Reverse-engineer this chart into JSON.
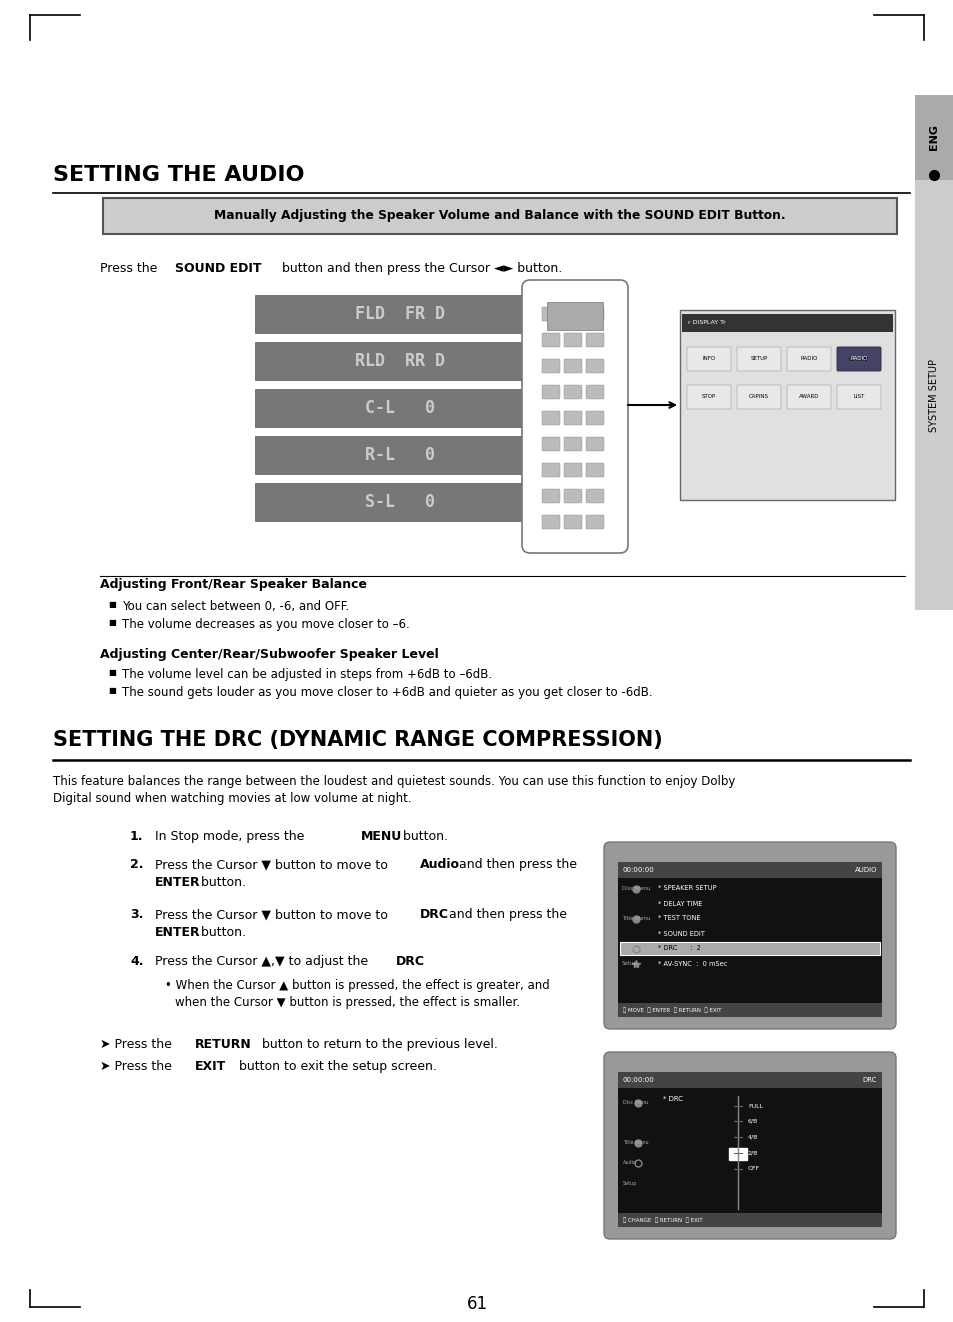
{
  "bg_color": "#ffffff",
  "section1_title": "SETTING THE AUDIO",
  "highlight_box_text": "Manually Adjusting the Speaker Volume and Balance with the SOUND EDIT Button.",
  "display_rows": [
    "FLD  FR D",
    "RLD  RR D",
    "C-L   0",
    "R-L   0",
    "S-L   0"
  ],
  "display_bg": "#777777",
  "display_text_color": "#cccccc",
  "adj_front_title": "Adjusting Front/Rear Speaker Balance",
  "adj_front_bullets": [
    "You can select between 0, -6, and OFF.",
    "The volume decreases as you move closer to –6."
  ],
  "adj_center_title": "Adjusting Center/Rear/Subwoofer Speaker Level",
  "adj_center_bullets": [
    "The volume level can be adjusted in steps from +6dB to –6dB.",
    "The sound gets louder as you move closer to +6dB and quieter as you get closer to -6dB."
  ],
  "section2_title": "SETTING THE DRC (DYNAMIC RANGE COMPRESSION)",
  "drc_desc_line1": "This feature balances the range between the loudest and quietest sounds. You can use this function to enjoy Dolby",
  "drc_desc_line2": "Digital sound when watching movies at low volume at night.",
  "page_num": "61",
  "eng_tab_text": "ENG",
  "system_setup_text": "SYSTEM SETUP"
}
